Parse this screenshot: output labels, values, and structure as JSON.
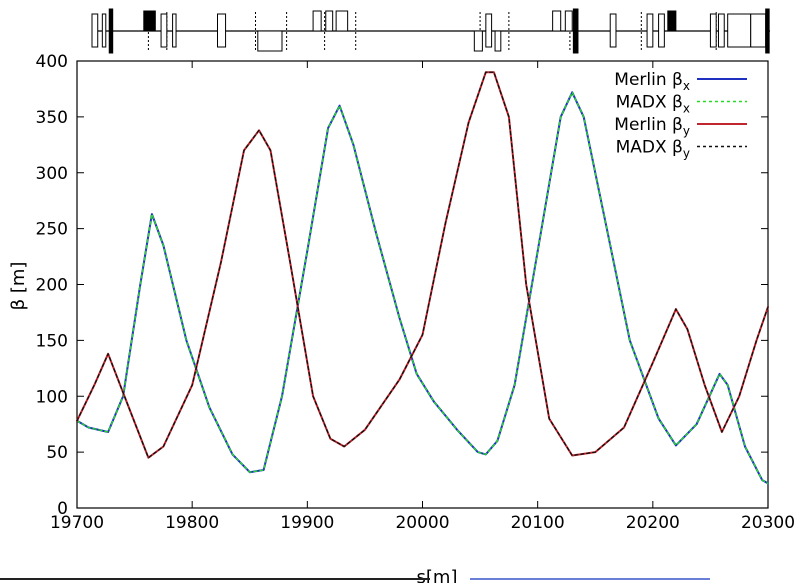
{
  "chart_data": {
    "type": "line",
    "title": "",
    "xlabel": "s[m]",
    "ylabel": "β [m]",
    "xlim": [
      19700,
      20300
    ],
    "ylim": [
      0,
      400
    ],
    "xticks": [
      19700,
      19800,
      19900,
      20000,
      20100,
      20200,
      20300
    ],
    "yticks": [
      0,
      50,
      100,
      150,
      200,
      250,
      300,
      350,
      400
    ],
    "tick_labels_x": [
      "19700",
      "19800",
      "19900",
      "20000",
      "20100",
      "20200",
      "20300"
    ],
    "tick_labels_y": [
      "0",
      "50",
      "100",
      "150",
      "200",
      "250",
      "300",
      "350",
      "400"
    ],
    "grid": false,
    "legend_position": "top-right",
    "series": [
      {
        "name": "Merlin βx",
        "label_main": "Merlin β",
        "label_sub": "x",
        "color": "#1f2fbf",
        "dash": "solid",
        "x": [
          19700,
          19710,
          19727,
          19740,
          19755,
          19765,
          19775,
          19795,
          19815,
          19835,
          19850,
          19862,
          19878,
          19900,
          19918,
          19928,
          19940,
          19960,
          19980,
          19995,
          20010,
          20030,
          20048,
          20055,
          20065,
          20080,
          20100,
          20120,
          20130,
          20140,
          20160,
          20180,
          20205,
          20220,
          20238,
          20258,
          20265,
          20280,
          20295,
          20300
        ],
        "y": [
          78,
          72,
          68,
          100,
          200,
          263,
          235,
          150,
          90,
          48,
          32,
          34,
          100,
          230,
          340,
          360,
          325,
          245,
          170,
          120,
          95,
          70,
          50,
          48,
          60,
          110,
          230,
          350,
          372,
          350,
          250,
          150,
          80,
          56,
          75,
          120,
          110,
          55,
          25,
          22
        ]
      },
      {
        "name": "MADX βx",
        "label_main": "MADX β",
        "label_sub": "x",
        "color": "#22dd22",
        "dash": "dotted",
        "x": [
          19700,
          19710,
          19727,
          19740,
          19755,
          19765,
          19775,
          19795,
          19815,
          19835,
          19850,
          19862,
          19878,
          19900,
          19918,
          19928,
          19940,
          19960,
          19980,
          19995,
          20010,
          20030,
          20048,
          20055,
          20065,
          20080,
          20100,
          20120,
          20130,
          20140,
          20160,
          20180,
          20205,
          20220,
          20238,
          20258,
          20265,
          20280,
          20295,
          20300
        ],
        "y": [
          78,
          72,
          68,
          100,
          200,
          263,
          235,
          150,
          90,
          48,
          32,
          34,
          100,
          230,
          340,
          360,
          325,
          245,
          170,
          120,
          95,
          70,
          50,
          48,
          60,
          110,
          230,
          350,
          372,
          350,
          250,
          150,
          80,
          56,
          75,
          120,
          110,
          55,
          25,
          22
        ]
      },
      {
        "name": "Merlin βy",
        "label_main": "Merlin β",
        "label_sub": "y",
        "color": "#c0262d",
        "dash": "solid",
        "x": [
          19700,
          19715,
          19727,
          19745,
          19762,
          19775,
          19800,
          19825,
          19845,
          19858,
          19868,
          19885,
          19905,
          19920,
          19932,
          19950,
          19980,
          20000,
          20020,
          20040,
          20055,
          20062,
          20075,
          20090,
          20110,
          20130,
          20150,
          20175,
          20200,
          20220,
          20230,
          20245,
          20260,
          20275,
          20290,
          20300
        ],
        "y": [
          78,
          110,
          138,
          90,
          45,
          55,
          110,
          220,
          320,
          338,
          320,
          220,
          100,
          62,
          55,
          70,
          115,
          155,
          255,
          345,
          390,
          390,
          350,
          200,
          80,
          47,
          50,
          72,
          130,
          178,
          160,
          110,
          68,
          100,
          150,
          180
        ]
      },
      {
        "name": "MADX βy",
        "label_main": "MADX β",
        "label_sub": "y",
        "color": "#111111",
        "dash": "dotted",
        "x": [
          19700,
          19715,
          19727,
          19745,
          19762,
          19775,
          19800,
          19825,
          19845,
          19858,
          19868,
          19885,
          19905,
          19920,
          19932,
          19950,
          19980,
          20000,
          20020,
          20040,
          20055,
          20062,
          20075,
          20090,
          20110,
          20130,
          20150,
          20175,
          20200,
          20220,
          20230,
          20245,
          20260,
          20275,
          20290,
          20300
        ],
        "y": [
          78,
          110,
          138,
          90,
          45,
          55,
          110,
          220,
          320,
          338,
          320,
          220,
          100,
          62,
          55,
          70,
          115,
          155,
          255,
          345,
          390,
          390,
          350,
          200,
          80,
          47,
          50,
          72,
          130,
          178,
          160,
          110,
          68,
          100,
          150,
          180
        ]
      }
    ],
    "lattice_elements": [
      {
        "s": [
          19690,
          19705
        ],
        "kind": "box"
      },
      {
        "s": [
          19705,
          19718
        ],
        "kind": "box"
      },
      {
        "s": [
          19722,
          19725
        ],
        "kind": "box"
      },
      {
        "s": [
          19728,
          19731
        ],
        "kind": "tall"
      },
      {
        "s": [
          19758,
          19768
        ],
        "kind": "block"
      },
      {
        "s": [
          19773,
          19778
        ],
        "kind": "box"
      },
      {
        "s": [
          19783,
          19786
        ],
        "kind": "box"
      },
      {
        "s": [
          19822,
          19829
        ],
        "kind": "box"
      },
      {
        "s": [
          19857,
          19878
        ],
        "kind": "lower"
      },
      {
        "s": [
          19905,
          19912
        ],
        "kind": "upper"
      },
      {
        "s": [
          19916,
          19922
        ],
        "kind": "upper"
      },
      {
        "s": [
          19925,
          19935
        ],
        "kind": "upper"
      },
      {
        "s": [
          20045,
          20052
        ],
        "kind": "lower"
      },
      {
        "s": [
          20055,
          20060
        ],
        "kind": "box"
      },
      {
        "s": [
          20063,
          20068
        ],
        "kind": "lower"
      },
      {
        "s": [
          20113,
          20120
        ],
        "kind": "upper"
      },
      {
        "s": [
          20124,
          20130
        ],
        "kind": "upper"
      },
      {
        "s": [
          20131,
          20135
        ],
        "kind": "tall"
      },
      {
        "s": [
          20163,
          20168
        ],
        "kind": "box"
      },
      {
        "s": [
          20195,
          20200
        ],
        "kind": "box"
      },
      {
        "s": [
          20205,
          20210
        ],
        "kind": "box"
      },
      {
        "s": [
          20213,
          20220
        ],
        "kind": "block"
      },
      {
        "s": [
          20250,
          20255
        ],
        "kind": "box"
      },
      {
        "s": [
          20257,
          20262
        ],
        "kind": "box"
      },
      {
        "s": [
          20265,
          20285
        ],
        "kind": "box"
      },
      {
        "s": [
          20285,
          20298
        ],
        "kind": "box"
      },
      {
        "s": [
          20298,
          20301
        ],
        "kind": "tall"
      }
    ],
    "lattice_markers": [
      19762,
      19778,
      19855,
      19882,
      19915,
      19942,
      20050,
      20075,
      20128,
      20190,
      20255
    ]
  }
}
